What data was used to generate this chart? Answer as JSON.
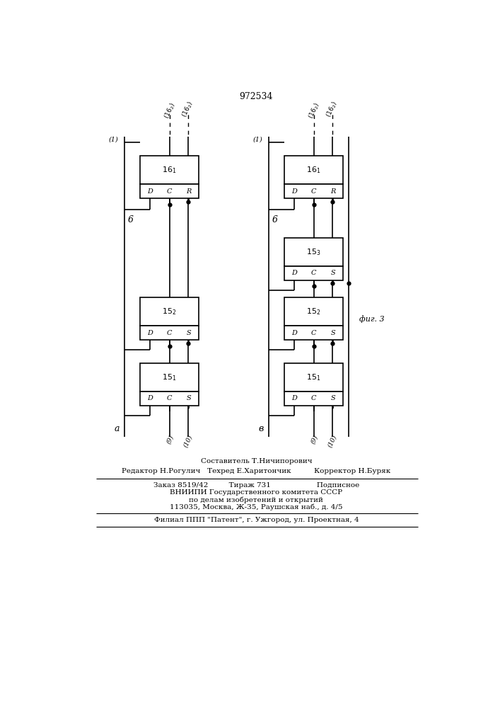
{
  "title": "972534",
  "bg_color": "#ffffff",
  "line_color": "#000000",
  "footer_lines": [
    "Составитель Т.Ничипорович",
    "Редактор Н.Рогулич   Техред Е.Харитончик          Корректор Н.Буряк",
    "Заказ 8519/42         Тираж 731                    Подписное",
    "ВНИИПИ Государственного комитета СССР",
    "по делам изобретений и открытий",
    "113035, Москва, Ж-35, Раушская наб., д. 4/5",
    "Филиал ППП \"Патент\", г. Ужгород, ул. Проектная, 4"
  ],
  "label_a": "а",
  "label_b": "в",
  "fig_note": "фиг. 3"
}
